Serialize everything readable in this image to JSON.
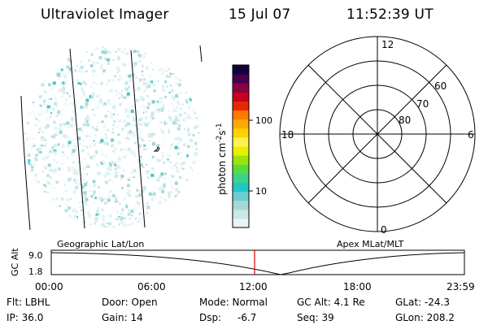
{
  "header": {
    "title": "Ultraviolet Imager",
    "date": "15 Jul 07",
    "time": "11:52:39 UT"
  },
  "colorbar": {
    "unit_label": "photon cm",
    "unit_exp1": "-2",
    "unit_mid": "s",
    "unit_exp2": "-1",
    "tick_100": "100",
    "tick_10": "10",
    "colors": [
      "#e8f4f4",
      "#cde6e6",
      "#a6d8d8",
      "#6ccfcf",
      "#22c6c6",
      "#3cd28c",
      "#58dc3c",
      "#9ae60c",
      "#e6f000",
      "#fff250",
      "#ffd200",
      "#ffaa00",
      "#ff7a00",
      "#e62800",
      "#c8001e",
      "#8c0046",
      "#460050",
      "#14003c"
    ]
  },
  "polar_plot": {
    "mlt_labels": {
      "top": "12",
      "bottom": "0",
      "left": "18",
      "right": "6"
    },
    "lat_labels": [
      "60",
      "70",
      "80"
    ]
  },
  "timeline": {
    "axis_label": "GC Alt",
    "y_top": "9.0",
    "y_bottom": "1.8",
    "left_label": "Geographic Lat/Lon",
    "right_label": "Apex MLat/MLT",
    "time_ticks": [
      "00:00",
      "06:00",
      "12:00",
      "18:00",
      "23:59"
    ],
    "marker_color": "#e00000"
  },
  "info": {
    "row1": {
      "flt": "Flt: LBHL",
      "door": "Door: Open",
      "mode": "Mode: Normal",
      "gc_alt": "GC Alt: 4.1 Re",
      "glat": "GLat: -24.3"
    },
    "row2": {
      "ip": "IP: 36.0",
      "gain": "Gain: 14",
      "dsp_label": "Dsp:",
      "dsp_value": "-6.7",
      "seq": "Seq: 39",
      "glon": "GLon: 208.2"
    }
  }
}
